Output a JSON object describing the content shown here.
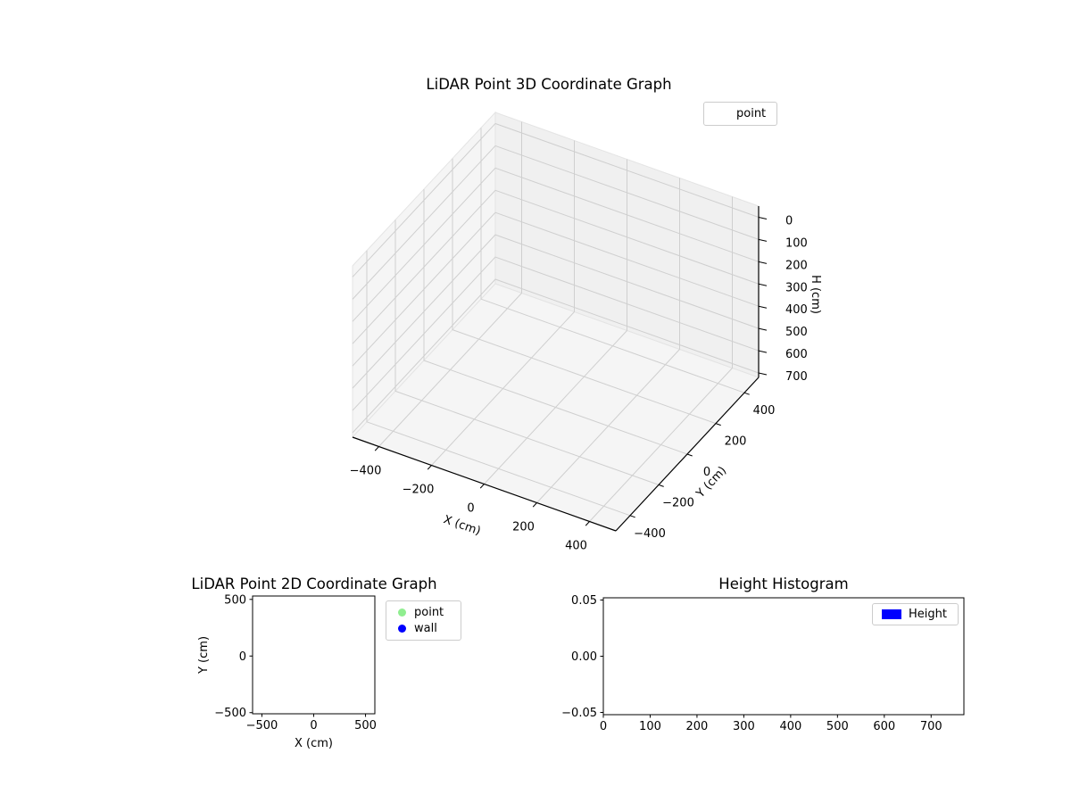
{
  "figure": {
    "background": "#ffffff"
  },
  "chart_data": [
    {
      "type": "scatter3d",
      "title": "LiDAR Point 3D Coordinate Graph",
      "xlabel": "X (cm)",
      "ylabel": "Y (cm)",
      "zlabel": "H (cm)",
      "xlim": [
        -500,
        500
      ],
      "ylim": [
        -500,
        500
      ],
      "zlim": [
        -50,
        720
      ],
      "zaxis_inverted": true,
      "xticks": [
        -400,
        -200,
        0,
        200,
        400
      ],
      "xtick_labels": [
        "−400",
        "−200",
        "0",
        "200",
        "400"
      ],
      "yticks": [
        -400,
        -200,
        0,
        200,
        400
      ],
      "ytick_labels": [
        "−400",
        "−200",
        "0",
        "200",
        "400"
      ],
      "zticks": [
        0,
        100,
        200,
        300,
        400,
        500,
        600,
        700
      ],
      "ztick_labels": [
        "0",
        "100",
        "200",
        "300",
        "400",
        "500",
        "600",
        "700"
      ],
      "legend_labels": [
        "point"
      ],
      "legend_position": "upper right outside axes",
      "grid": true,
      "pane_color": "#f5f5f5",
      "grid_color": "#cfcfcf",
      "series": [
        {
          "name": "point",
          "points": []
        }
      ]
    },
    {
      "type": "scatter",
      "title": "LiDAR Point 2D Coordinate Graph",
      "xlabel": "X (cm)",
      "ylabel": "Y (cm)",
      "xlim": [
        -590,
        590
      ],
      "ylim": [
        -510,
        530
      ],
      "xticks": [
        -500,
        0,
        500
      ],
      "xtick_labels": [
        "−500",
        "0",
        "500"
      ],
      "yticks": [
        500,
        0,
        -500
      ],
      "ytick_labels": [
        "500",
        "0",
        "−500"
      ],
      "legend_labels": [
        "point",
        "wall"
      ],
      "grid": false,
      "series": [
        {
          "name": "point",
          "color": "#90ee90",
          "points": []
        },
        {
          "name": "wall",
          "color": "#0000ff",
          "points": []
        }
      ]
    },
    {
      "type": "bar",
      "title": "Height Histogram",
      "xlabel": "",
      "ylabel": "",
      "xlim": [
        0,
        770
      ],
      "ylim": [
        -0.052,
        0.052
      ],
      "xticks": [
        0,
        100,
        200,
        300,
        400,
        500,
        600,
        700
      ],
      "xtick_labels": [
        "0",
        "100",
        "200",
        "300",
        "400",
        "500",
        "600",
        "700"
      ],
      "yticks": [
        0.05,
        0,
        -0.05
      ],
      "ytick_labels": [
        "0.05",
        "0.00",
        "−0.05"
      ],
      "legend_labels": [
        "Height"
      ],
      "grid": false,
      "series": [
        {
          "name": "Height",
          "color": "#0000ff",
          "values": []
        }
      ]
    }
  ]
}
